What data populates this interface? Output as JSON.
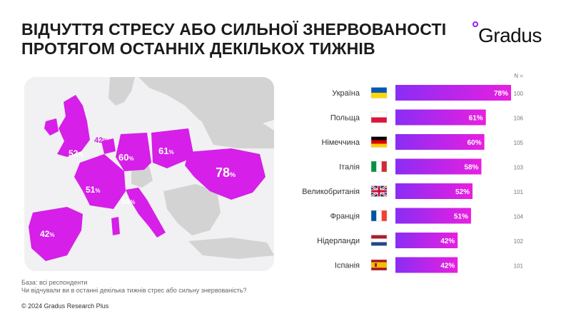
{
  "title": {
    "line1": "ВІДЧУТТЯ СТРЕСУ АБО СИЛЬНОЇ ЗНЕРВОВАНОСТІ",
    "line2": "ПРОТЯГОМ ОСТАННІХ ДЕКІЛЬКОХ ТИЖНІВ"
  },
  "brand": {
    "name": "Gradus",
    "color": "#9a1df0"
  },
  "colors": {
    "map_land": "#d3d3d3",
    "map_sea": "#f1f1f3",
    "map_highlight": "#d61fe8",
    "bar_start": "#8a2df4",
    "bar_end": "#e81fe0"
  },
  "map_labels": [
    {
      "country": "UK",
      "value": "52",
      "unit": "%"
    },
    {
      "country": "NL",
      "value": "42",
      "unit": "%"
    },
    {
      "country": "DE",
      "value": "60",
      "unit": "%"
    },
    {
      "country": "PL",
      "value": "61",
      "unit": "%"
    },
    {
      "country": "UA",
      "value": "78",
      "unit": "%"
    },
    {
      "country": "FR",
      "value": "51",
      "unit": "%"
    },
    {
      "country": "IT",
      "value": "58",
      "unit": "%"
    },
    {
      "country": "ES",
      "value": "42",
      "unit": "%"
    }
  ],
  "chart_data": {
    "type": "bar",
    "orientation": "horizontal",
    "n_header": "N =",
    "categories": [
      "Україна",
      "Польща",
      "Німеччина",
      "Італія",
      "Великобританія",
      "Франція",
      "Нідерланди",
      "Іспанія"
    ],
    "values": [
      78,
      61,
      60,
      58,
      52,
      51,
      42,
      42
    ],
    "value_labels": [
      "78%",
      "61%",
      "60%",
      "58%",
      "52%",
      "51%",
      "42%",
      "42%"
    ],
    "n_values": [
      "100",
      "106",
      "105",
      "103",
      "101",
      "104",
      "102",
      "101"
    ],
    "flags": [
      "ukraine-flag",
      "poland-flag",
      "germany-flag",
      "italy-flag",
      "uk-flag",
      "france-flag",
      "netherlands-flag",
      "spain-flag"
    ],
    "xlim": [
      0,
      78
    ],
    "grid": false
  },
  "footer": {
    "base": "База: всі респонденти",
    "question": "Чи відчували ви в останні декілька тижнів стрес або сильну знервованість?",
    "copyright": "© 2024 Gradus Research Plus"
  }
}
